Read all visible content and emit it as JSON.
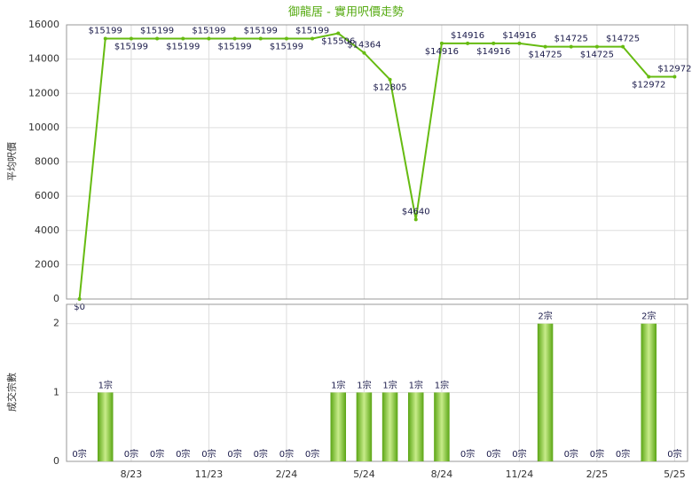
{
  "chart_data": [
    {
      "type": "line",
      "title": "御龍居 - 實用呎價走勢",
      "y_label": "平均呎價",
      "color": "#66bb11",
      "values": [
        0,
        15199,
        15199,
        15199,
        15199,
        15199,
        15199,
        15199,
        15199,
        15199,
        15506,
        14364,
        12805,
        4640,
        14916,
        14916,
        14916,
        14916,
        14725,
        14725,
        14725,
        14725,
        12972,
        12972
      ],
      "value_labels": [
        "$0",
        "$15199",
        "$15199",
        "$15199",
        "$15199",
        "$15199",
        "$15199",
        "$15199",
        "$15199",
        "$15199",
        "$15506",
        "$14364",
        "$12805",
        "$4640",
        "$14916",
        "$14916",
        "$14916",
        "$14916",
        "$14725",
        "$14725",
        "$14725",
        "$14725",
        "$12972",
        "$12972"
      ],
      "ylim": [
        0,
        16000
      ],
      "yticks": [
        0,
        2000,
        4000,
        6000,
        8000,
        10000,
        12000,
        14000,
        16000
      ],
      "grid": true
    },
    {
      "type": "bar",
      "y_label": "成交宗數",
      "color": "#77c022",
      "categories": [
        null,
        null,
        "8/23",
        null,
        null,
        "11/23",
        null,
        null,
        "2/24",
        null,
        null,
        "5/24",
        null,
        null,
        "8/24",
        null,
        null,
        "11/24",
        null,
        null,
        "2/25",
        null,
        null,
        "5/25"
      ],
      "values": [
        0,
        1,
        0,
        0,
        0,
        0,
        0,
        0,
        0,
        0,
        1,
        1,
        1,
        1,
        1,
        0,
        0,
        0,
        2,
        0,
        0,
        0,
        2,
        0
      ],
      "value_labels": [
        "0宗",
        "1宗",
        "0宗",
        "0宗",
        "0宗",
        "0宗",
        "0宗",
        "0宗",
        "0宗",
        "0宗",
        "1宗",
        "1宗",
        "1宗",
        "1宗",
        "1宗",
        "0宗",
        "0宗",
        "0宗",
        "2宗",
        "0宗",
        "0宗",
        "0宗",
        "2宗",
        "0宗"
      ],
      "ylim": [
        0,
        2.28
      ],
      "yticks": [
        0,
        1,
        2
      ],
      "grid": true
    }
  ]
}
